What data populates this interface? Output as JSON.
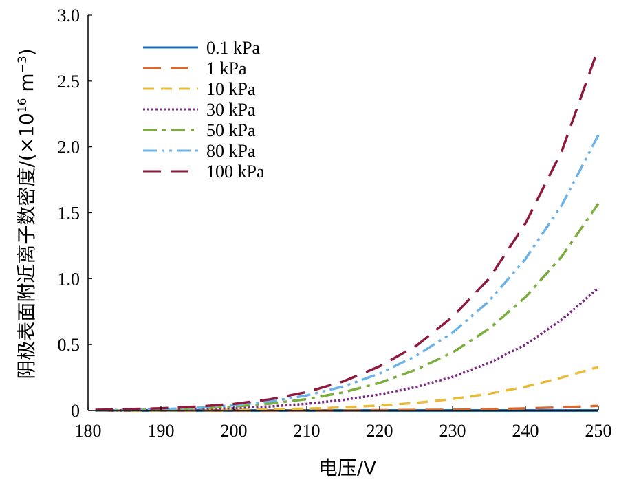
{
  "chart_data": {
    "type": "line",
    "xlabel": "电压/V",
    "ylabel": "阴极表面附近离子数密度/(×10",
    "ylabel_exponent": "16",
    "ylabel_unit": " m",
    "ylabel_unit_exponent": "−3",
    "ylabel_close": ")",
    "xlim": [
      180,
      250
    ],
    "ylim": [
      0,
      3.0
    ],
    "x_ticks": [
      "180",
      "190",
      "200",
      "210",
      "220",
      "230",
      "240",
      "250"
    ],
    "y_ticks": [
      "0",
      "0.5",
      "1.0",
      "1.5",
      "2.0",
      "2.5",
      "3.0"
    ],
    "x_tick_values": [
      180,
      190,
      200,
      210,
      220,
      230,
      240,
      250
    ],
    "y_tick_values": [
      0,
      0.5,
      1.0,
      1.5,
      2.0,
      2.5,
      3.0
    ],
    "grid": false,
    "legend_position": "top-left",
    "x": [
      181,
      185,
      190,
      195,
      200,
      205,
      210,
      215,
      220,
      225,
      230,
      235,
      240,
      245,
      250
    ],
    "series": [
      {
        "name": "0.1 kPa",
        "color": "#1F6FBF",
        "dash": "solid",
        "values": [
          0.0,
          0.0,
          0.0,
          0.0,
          0.0,
          0.0,
          0.0,
          0.0,
          0.0,
          0.0,
          0.0,
          0.0,
          0.0,
          0.0,
          0.0
        ]
      },
      {
        "name": "1 kPa",
        "color": "#D9692E",
        "dash": "longdash",
        "values": [
          0.0,
          0.0,
          0.0,
          0.0,
          0.0,
          0.0,
          0.0,
          0.001,
          0.002,
          0.004,
          0.006,
          0.01,
          0.016,
          0.024,
          0.035
        ]
      },
      {
        "name": "10 kPa",
        "color": "#E8BC3A",
        "dash": "dash",
        "values": [
          0.0,
          0.0,
          0.001,
          0.002,
          0.004,
          0.008,
          0.014,
          0.024,
          0.038,
          0.058,
          0.087,
          0.127,
          0.18,
          0.25,
          0.33
        ]
      },
      {
        "name": "30 kPa",
        "color": "#7B2A82",
        "dash": "dot",
        "values": [
          0.0,
          0.002,
          0.005,
          0.01,
          0.018,
          0.031,
          0.051,
          0.08,
          0.121,
          0.178,
          0.255,
          0.36,
          0.5,
          0.69,
          0.93
        ]
      },
      {
        "name": "50 kPa",
        "color": "#7CAE3E",
        "dash": "dashdot",
        "values": [
          0.001,
          0.003,
          0.008,
          0.016,
          0.03,
          0.052,
          0.086,
          0.137,
          0.21,
          0.31,
          0.44,
          0.62,
          0.86,
          1.17,
          1.57
        ]
      },
      {
        "name": "80 kPa",
        "color": "#6CB3E8",
        "dash": "dashdotdot",
        "values": [
          0.001,
          0.004,
          0.01,
          0.021,
          0.04,
          0.069,
          0.114,
          0.182,
          0.28,
          0.415,
          0.59,
          0.83,
          1.15,
          1.56,
          2.09
        ]
      },
      {
        "name": "100 kPa",
        "color": "#8E1B3E",
        "dash": "longdash",
        "values": [
          0.005,
          0.01,
          0.017,
          0.03,
          0.05,
          0.085,
          0.14,
          0.22,
          0.335,
          0.49,
          0.71,
          1.0,
          1.42,
          1.97,
          2.75
        ]
      }
    ]
  }
}
